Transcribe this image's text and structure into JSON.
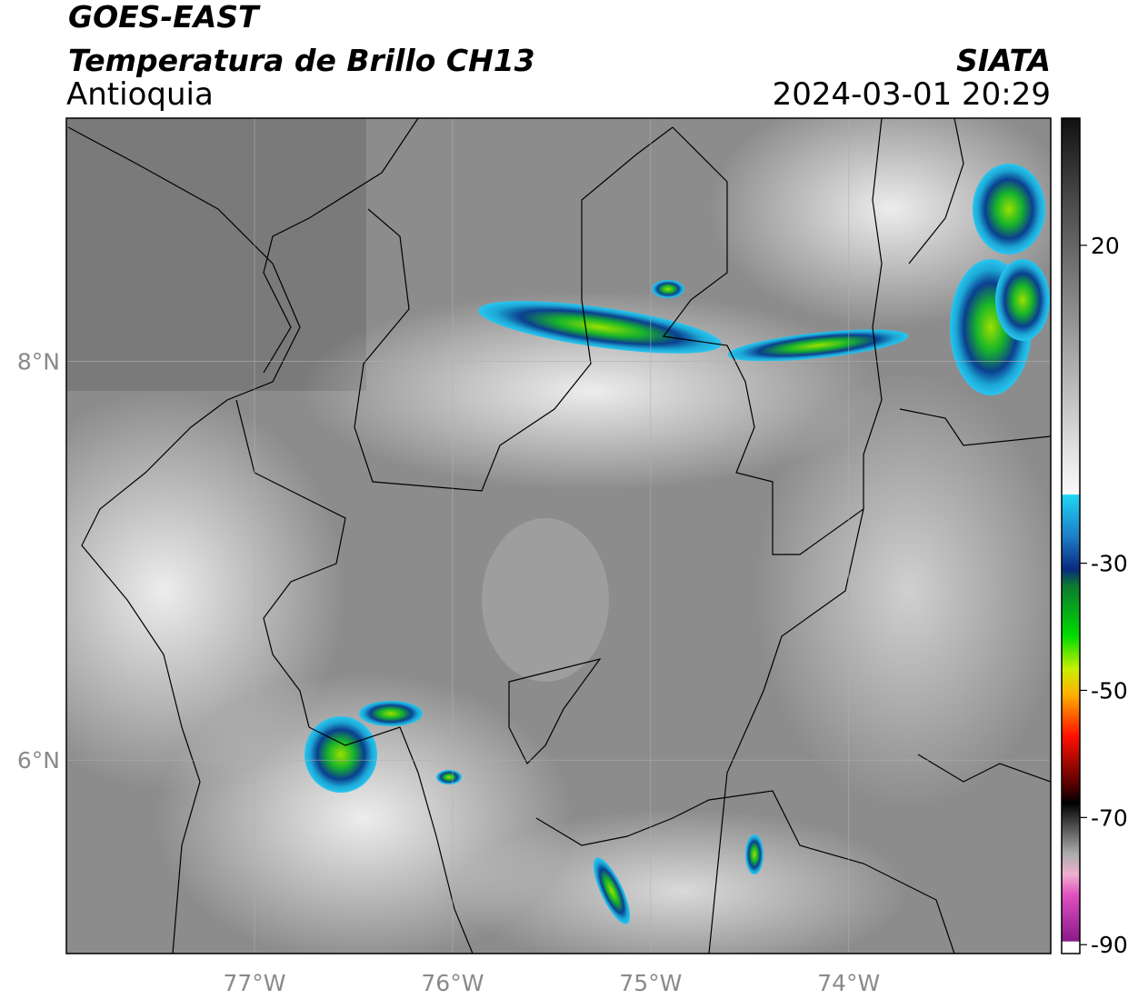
{
  "header": {
    "title": "GOES-EAST",
    "subtitle": "Temperatura de Brillo CH13",
    "region": "Antioquia",
    "source": "SIATA",
    "datetime": "2024-03-01 20:29"
  },
  "map": {
    "xlim": [
      -77.95,
      -72.98
    ],
    "ylim": [
      5.03,
      9.22
    ],
    "grid": true,
    "xticks": [
      {
        "value": -77,
        "label": "77°W"
      },
      {
        "value": -76,
        "label": "76°W"
      },
      {
        "value": -75,
        "label": "75°W"
      },
      {
        "value": -74,
        "label": "74°W"
      }
    ],
    "yticks": [
      {
        "value": 6,
        "label": "6°N"
      },
      {
        "value": 8,
        "label": "8°N"
      }
    ]
  },
  "colorbar": {
    "lim": [
      -91.4,
      40
    ],
    "ticks": [
      20,
      -30,
      -50,
      -70,
      -90
    ]
  }
}
